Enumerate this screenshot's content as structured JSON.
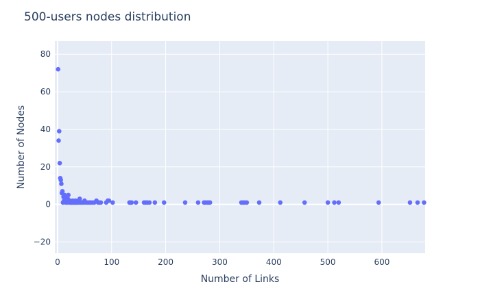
{
  "chart_data": {
    "type": "scatter",
    "title": "500-users nodes distribution",
    "xlabel": "Number of Links",
    "ylabel": "Number of Nodes",
    "xlim": [
      -5,
      680
    ],
    "ylim": [
      -26,
      87
    ],
    "xticks": [
      0,
      100,
      200,
      300,
      400,
      500,
      600
    ],
    "yticks": [
      -20,
      0,
      20,
      40,
      60,
      80
    ],
    "grid": true,
    "legend": "none",
    "colors": {
      "plot_bg": "#e5ecf6",
      "marker": "#636efa",
      "grid": "#ffffff",
      "text": "#2a3f5f"
    },
    "series": [
      {
        "x": [
          1,
          2,
          3,
          4,
          5,
          6,
          7,
          8,
          9,
          10,
          11,
          12,
          13,
          14,
          15,
          16,
          17,
          18,
          19,
          20,
          21,
          22,
          23,
          24,
          25,
          26,
          27,
          28,
          29,
          30,
          31,
          32,
          33,
          34,
          35,
          36,
          37,
          38,
          39,
          40,
          41,
          42,
          44,
          46,
          48,
          50,
          52,
          55,
          58,
          60,
          62,
          65,
          68,
          72,
          75,
          78,
          80,
          90,
          93,
          95,
          102,
          133,
          135,
          137,
          145,
          160,
          163,
          166,
          170,
          180,
          197,
          236,
          260,
          271,
          273,
          277,
          280,
          282,
          340,
          343,
          346,
          350,
          373,
          412,
          457,
          500,
          512,
          520,
          594,
          652,
          666,
          678
        ],
        "y": [
          72,
          34,
          39,
          22,
          14,
          13,
          11,
          6,
          7,
          1,
          4,
          2,
          5,
          3,
          1,
          2,
          4,
          1,
          3,
          5,
          2,
          1,
          2,
          1,
          1,
          1,
          1,
          2,
          1,
          1,
          1,
          1,
          2,
          1,
          1,
          1,
          1,
          2,
          1,
          2,
          3,
          1,
          1,
          1,
          1,
          2,
          1,
          1,
          1,
          1,
          1,
          1,
          1,
          2,
          1,
          1,
          1,
          1,
          2,
          2,
          1,
          1,
          1,
          1,
          1,
          1,
          1,
          1,
          1,
          1,
          1,
          1,
          1,
          1,
          1,
          1,
          1,
          1,
          1,
          1,
          1,
          1,
          1,
          1,
          1,
          1,
          1,
          1,
          1,
          1,
          1,
          1
        ]
      }
    ]
  }
}
